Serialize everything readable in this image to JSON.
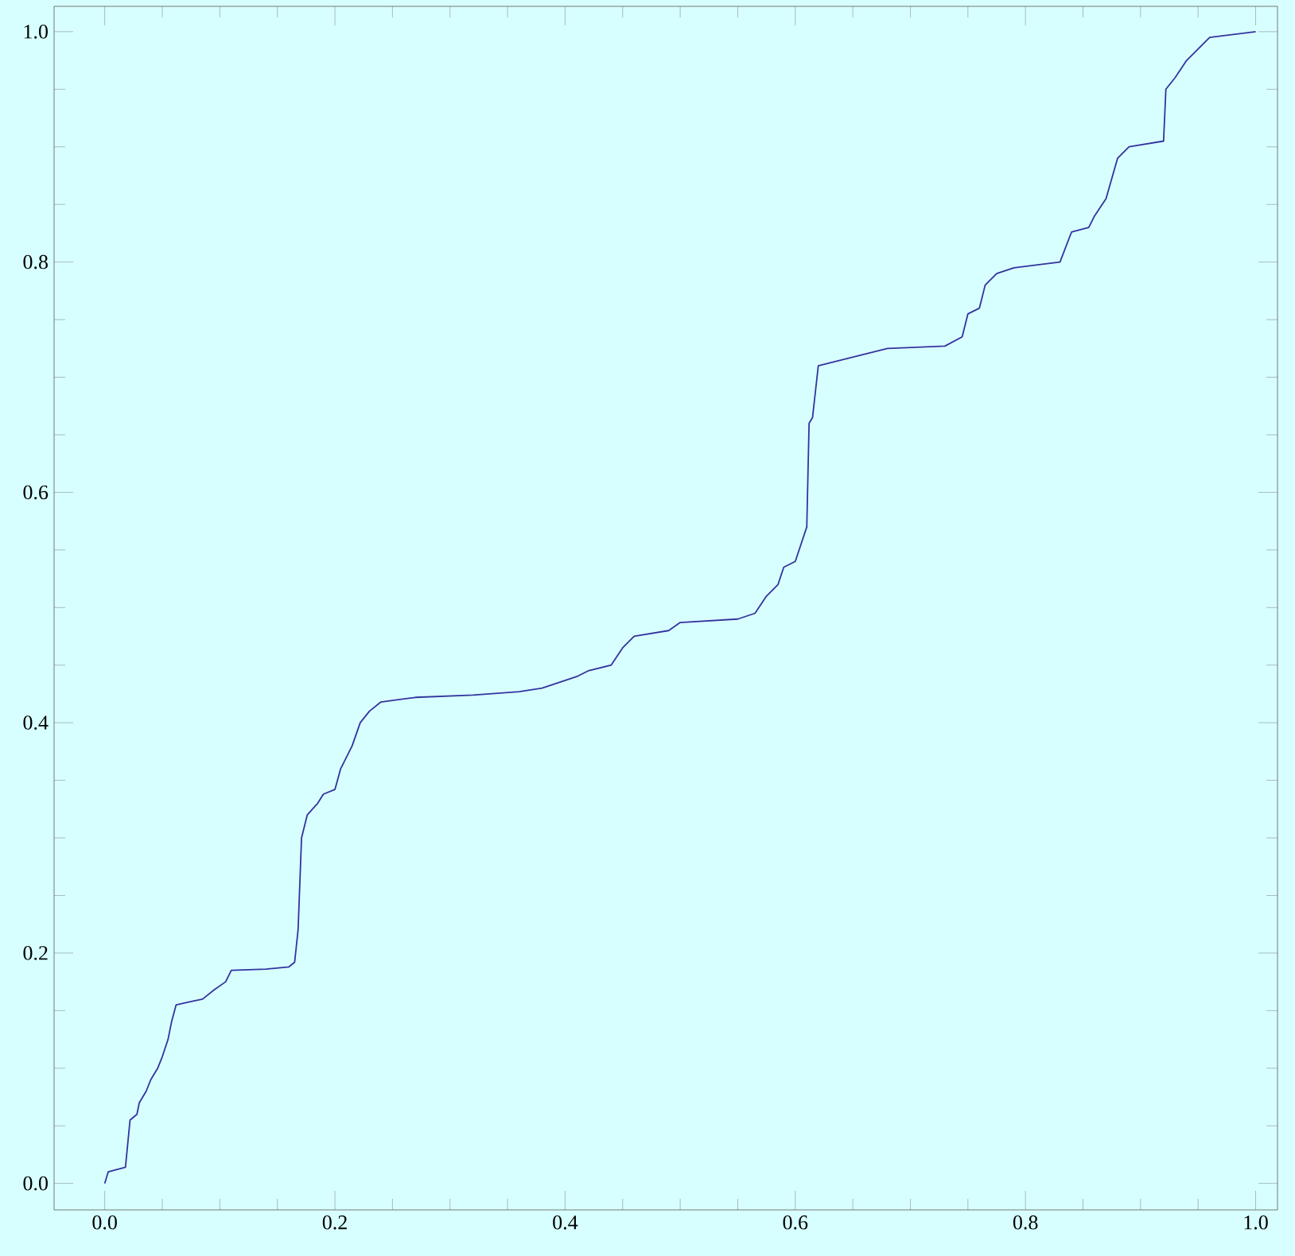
{
  "chart_data": {
    "type": "line",
    "color": "#33339f",
    "line_style": "solid",
    "marker": "none",
    "x": [
      0.0,
      0.003,
      0.018,
      0.022,
      0.028,
      0.03,
      0.036,
      0.04,
      0.046,
      0.05,
      0.055,
      0.058,
      0.062,
      0.075,
      0.085,
      0.095,
      0.105,
      0.11,
      0.14,
      0.16,
      0.165,
      0.168,
      0.171,
      0.176,
      0.185,
      0.19,
      0.2,
      0.205,
      0.215,
      0.222,
      0.23,
      0.24,
      0.27,
      0.32,
      0.36,
      0.38,
      0.395,
      0.41,
      0.42,
      0.44,
      0.45,
      0.46,
      0.49,
      0.5,
      0.55,
      0.565,
      0.575,
      0.585,
      0.59,
      0.6,
      0.605,
      0.61,
      0.612,
      0.615,
      0.62,
      0.64,
      0.66,
      0.68,
      0.73,
      0.745,
      0.75,
      0.76,
      0.765,
      0.775,
      0.79,
      0.83,
      0.84,
      0.855,
      0.86,
      0.87,
      0.88,
      0.89,
      0.92,
      0.922,
      0.93,
      0.94,
      0.95,
      0.96,
      1.0
    ],
    "values": [
      0.0,
      0.01,
      0.014,
      0.055,
      0.06,
      0.07,
      0.08,
      0.09,
      0.1,
      0.11,
      0.125,
      0.14,
      0.155,
      0.158,
      0.16,
      0.168,
      0.175,
      0.185,
      0.186,
      0.188,
      0.192,
      0.22,
      0.3,
      0.32,
      0.33,
      0.338,
      0.342,
      0.36,
      0.38,
      0.4,
      0.41,
      0.418,
      0.422,
      0.424,
      0.427,
      0.43,
      0.435,
      0.44,
      0.445,
      0.45,
      0.465,
      0.475,
      0.48,
      0.487,
      0.49,
      0.495,
      0.51,
      0.52,
      0.535,
      0.54,
      0.555,
      0.57,
      0.66,
      0.665,
      0.71,
      0.715,
      0.72,
      0.725,
      0.727,
      0.735,
      0.755,
      0.76,
      0.78,
      0.79,
      0.795,
      0.8,
      0.826,
      0.83,
      0.84,
      0.855,
      0.89,
      0.9,
      0.905,
      0.95,
      0.96,
      0.975,
      0.985,
      0.995,
      1.0
    ],
    "xlim": [
      -0.044,
      1.019
    ],
    "ylim": [
      -0.023,
      1.022
    ],
    "xticks": [
      {
        "value": 0,
        "label": "0.0"
      },
      {
        "value": 0.05,
        "label": null
      },
      {
        "value": 0.1,
        "label": null
      },
      {
        "value": 0.15,
        "label": null
      },
      {
        "value": 0.2,
        "label": "0.2"
      },
      {
        "value": 0.25,
        "label": null
      },
      {
        "value": 0.3,
        "label": null
      },
      {
        "value": 0.35,
        "label": null
      },
      {
        "value": 0.4,
        "label": "0.4"
      },
      {
        "value": 0.45,
        "label": null
      },
      {
        "value": 0.5,
        "label": null
      },
      {
        "value": 0.55,
        "label": null
      },
      {
        "value": 0.6,
        "label": "0.6"
      },
      {
        "value": 0.65,
        "label": null
      },
      {
        "value": 0.7,
        "label": null
      },
      {
        "value": 0.75,
        "label": null
      },
      {
        "value": 0.8,
        "label": "0.8"
      },
      {
        "value": 0.85,
        "label": null
      },
      {
        "value": 0.9,
        "label": null
      },
      {
        "value": 0.95,
        "label": null
      },
      {
        "value": 1,
        "label": "1.0"
      }
    ],
    "yticks": [
      {
        "value": 0,
        "label": "0.0"
      },
      {
        "value": 0.05,
        "label": null
      },
      {
        "value": 0.1,
        "label": null
      },
      {
        "value": 0.15,
        "label": null
      },
      {
        "value": 0.2,
        "label": "0.2"
      },
      {
        "value": 0.25,
        "label": null
      },
      {
        "value": 0.3,
        "label": null
      },
      {
        "value": 0.35,
        "label": null
      },
      {
        "value": 0.4,
        "label": "0.4"
      },
      {
        "value": 0.45,
        "label": null
      },
      {
        "value": 0.5,
        "label": null
      },
      {
        "value": 0.55,
        "label": null
      },
      {
        "value": 0.6,
        "label": "0.6"
      },
      {
        "value": 0.65,
        "label": null
      },
      {
        "value": 0.7,
        "label": null
      },
      {
        "value": 0.75,
        "label": null
      },
      {
        "value": 0.8,
        "label": "0.8"
      },
      {
        "value": 0.85,
        "label": null
      },
      {
        "value": 0.9,
        "label": null
      },
      {
        "value": 0.95,
        "label": null
      },
      {
        "value": 1,
        "label": "1.0"
      }
    ]
  }
}
